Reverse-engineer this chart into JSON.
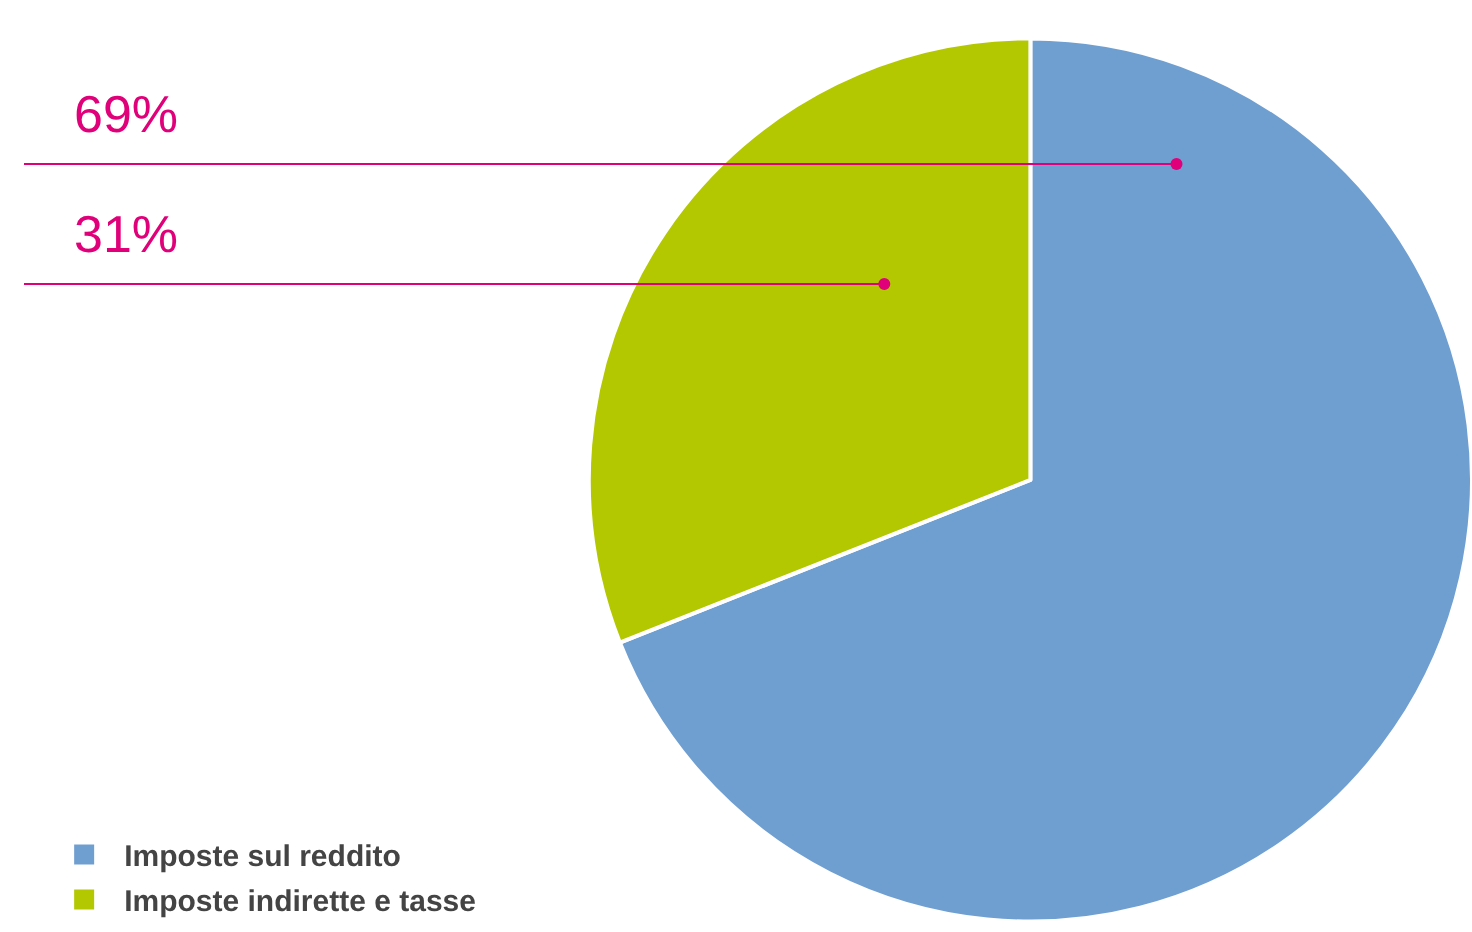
{
  "chart_data": {
    "type": "pie",
    "categories": [
      "Imposte sul reddito",
      "Imposte indirette e tasse"
    ],
    "values": [
      69,
      31
    ],
    "colors": [
      "#6f9fd1",
      "#b3c800"
    ],
    "value_labels": [
      "69%",
      "31%"
    ],
    "legend": "bottom left"
  }
}
